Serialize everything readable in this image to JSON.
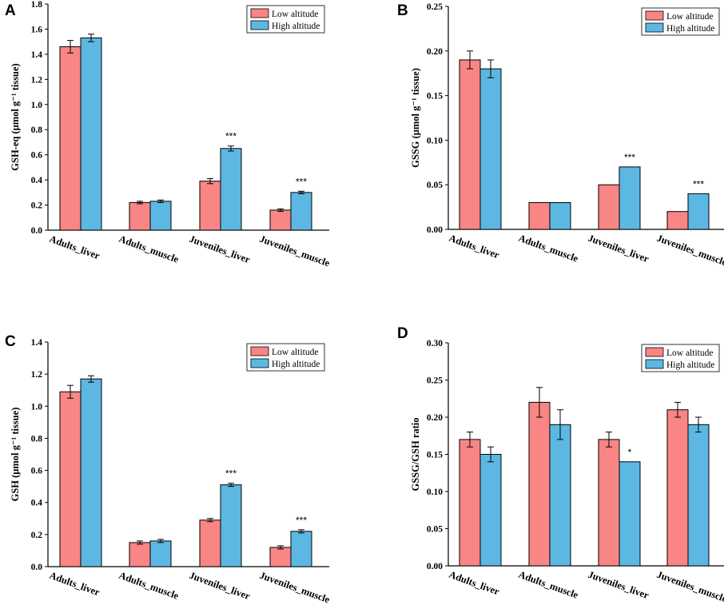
{
  "colors": {
    "low": "#f98585",
    "high": "#5cb8e2",
    "axis": "#000000"
  },
  "legend": {
    "low": "Low altitude",
    "high": "High altitude",
    "placement": "top-right"
  },
  "chart_data": [
    {
      "panel": "A",
      "type": "bar",
      "ylabel": "GSH-eq (μmol g⁻¹ tissue)",
      "ylim": [
        0,
        1.8
      ],
      "yticks": [
        "0.0",
        "0.2",
        "0.4",
        "0.6",
        "0.8",
        "1.0",
        "1.2",
        "1.4",
        "1.6",
        "1.8"
      ],
      "categories": [
        "Adults_liver",
        "Adults_muscle",
        "Juveniles_liver",
        "Juveniles_muscle"
      ],
      "series": [
        {
          "name": "Low altitude",
          "values": [
            1.46,
            0.22,
            0.39,
            0.16
          ],
          "errors": [
            0.05,
            0.01,
            0.02,
            0.01
          ]
        },
        {
          "name": "High altitude",
          "values": [
            1.53,
            0.23,
            0.65,
            0.3
          ],
          "errors": [
            0.03,
            0.01,
            0.02,
            0.01
          ]
        }
      ],
      "annotations": [
        "",
        "",
        "***",
        "***"
      ]
    },
    {
      "panel": "B",
      "type": "bar",
      "ylabel": "GSSG (μmol g⁻¹ tissue)",
      "ylim": [
        0,
        0.25
      ],
      "yticks": [
        "0.00",
        "0.05",
        "0.10",
        "0.15",
        "0.20",
        "0.25"
      ],
      "categories": [
        "Adults_liver",
        "Adults_muscle",
        "Juveniles_liver",
        "Juveniles_muscle"
      ],
      "series": [
        {
          "name": "Low altitude",
          "values": [
            0.19,
            0.03,
            0.05,
            0.02
          ],
          "errors": [
            0.01,
            0,
            0,
            0
          ]
        },
        {
          "name": "High altitude",
          "values": [
            0.18,
            0.03,
            0.07,
            0.04
          ],
          "errors": [
            0.01,
            0,
            0,
            0
          ]
        }
      ],
      "annotations": [
        "",
        "",
        "***",
        "***"
      ]
    },
    {
      "panel": "C",
      "type": "bar",
      "ylabel": "GSH (μmol g⁻¹ tissue)",
      "ylim": [
        0,
        1.4
      ],
      "yticks": [
        "0.0",
        "0.2",
        "0.4",
        "0.6",
        "0.8",
        "1.0",
        "1.2",
        "1.4"
      ],
      "categories": [
        "Adults_liver",
        "Adults_muscle",
        "Juveniles_liver",
        "Juveniles_muscle"
      ],
      "series": [
        {
          "name": "Low altitude",
          "values": [
            1.09,
            0.15,
            0.29,
            0.12
          ],
          "errors": [
            0.04,
            0.01,
            0.01,
            0.01
          ]
        },
        {
          "name": "High altitude",
          "values": [
            1.17,
            0.16,
            0.51,
            0.22
          ],
          "errors": [
            0.02,
            0.01,
            0.01,
            0.01
          ]
        }
      ],
      "annotations": [
        "",
        "",
        "***",
        "***"
      ]
    },
    {
      "panel": "D",
      "type": "bar",
      "ylabel": "GSSG/GSH ratio",
      "ylim": [
        0,
        0.3
      ],
      "yticks": [
        "0.00",
        "0.05",
        "0.10",
        "0.15",
        "0.20",
        "0.25",
        "0.30"
      ],
      "categories": [
        "Adults_liver",
        "Adults_muscle",
        "Juveniles_liver",
        "Juveniles_muscle"
      ],
      "series": [
        {
          "name": "Low altitude",
          "values": [
            0.17,
            0.22,
            0.17,
            0.21
          ],
          "errors": [
            0.01,
            0.02,
            0.01,
            0.01
          ]
        },
        {
          "name": "High altitude",
          "values": [
            0.15,
            0.19,
            0.14,
            0.19
          ],
          "errors": [
            0.01,
            0.02,
            0,
            0.01
          ]
        }
      ],
      "annotations": [
        "",
        "",
        "*",
        ""
      ]
    }
  ]
}
